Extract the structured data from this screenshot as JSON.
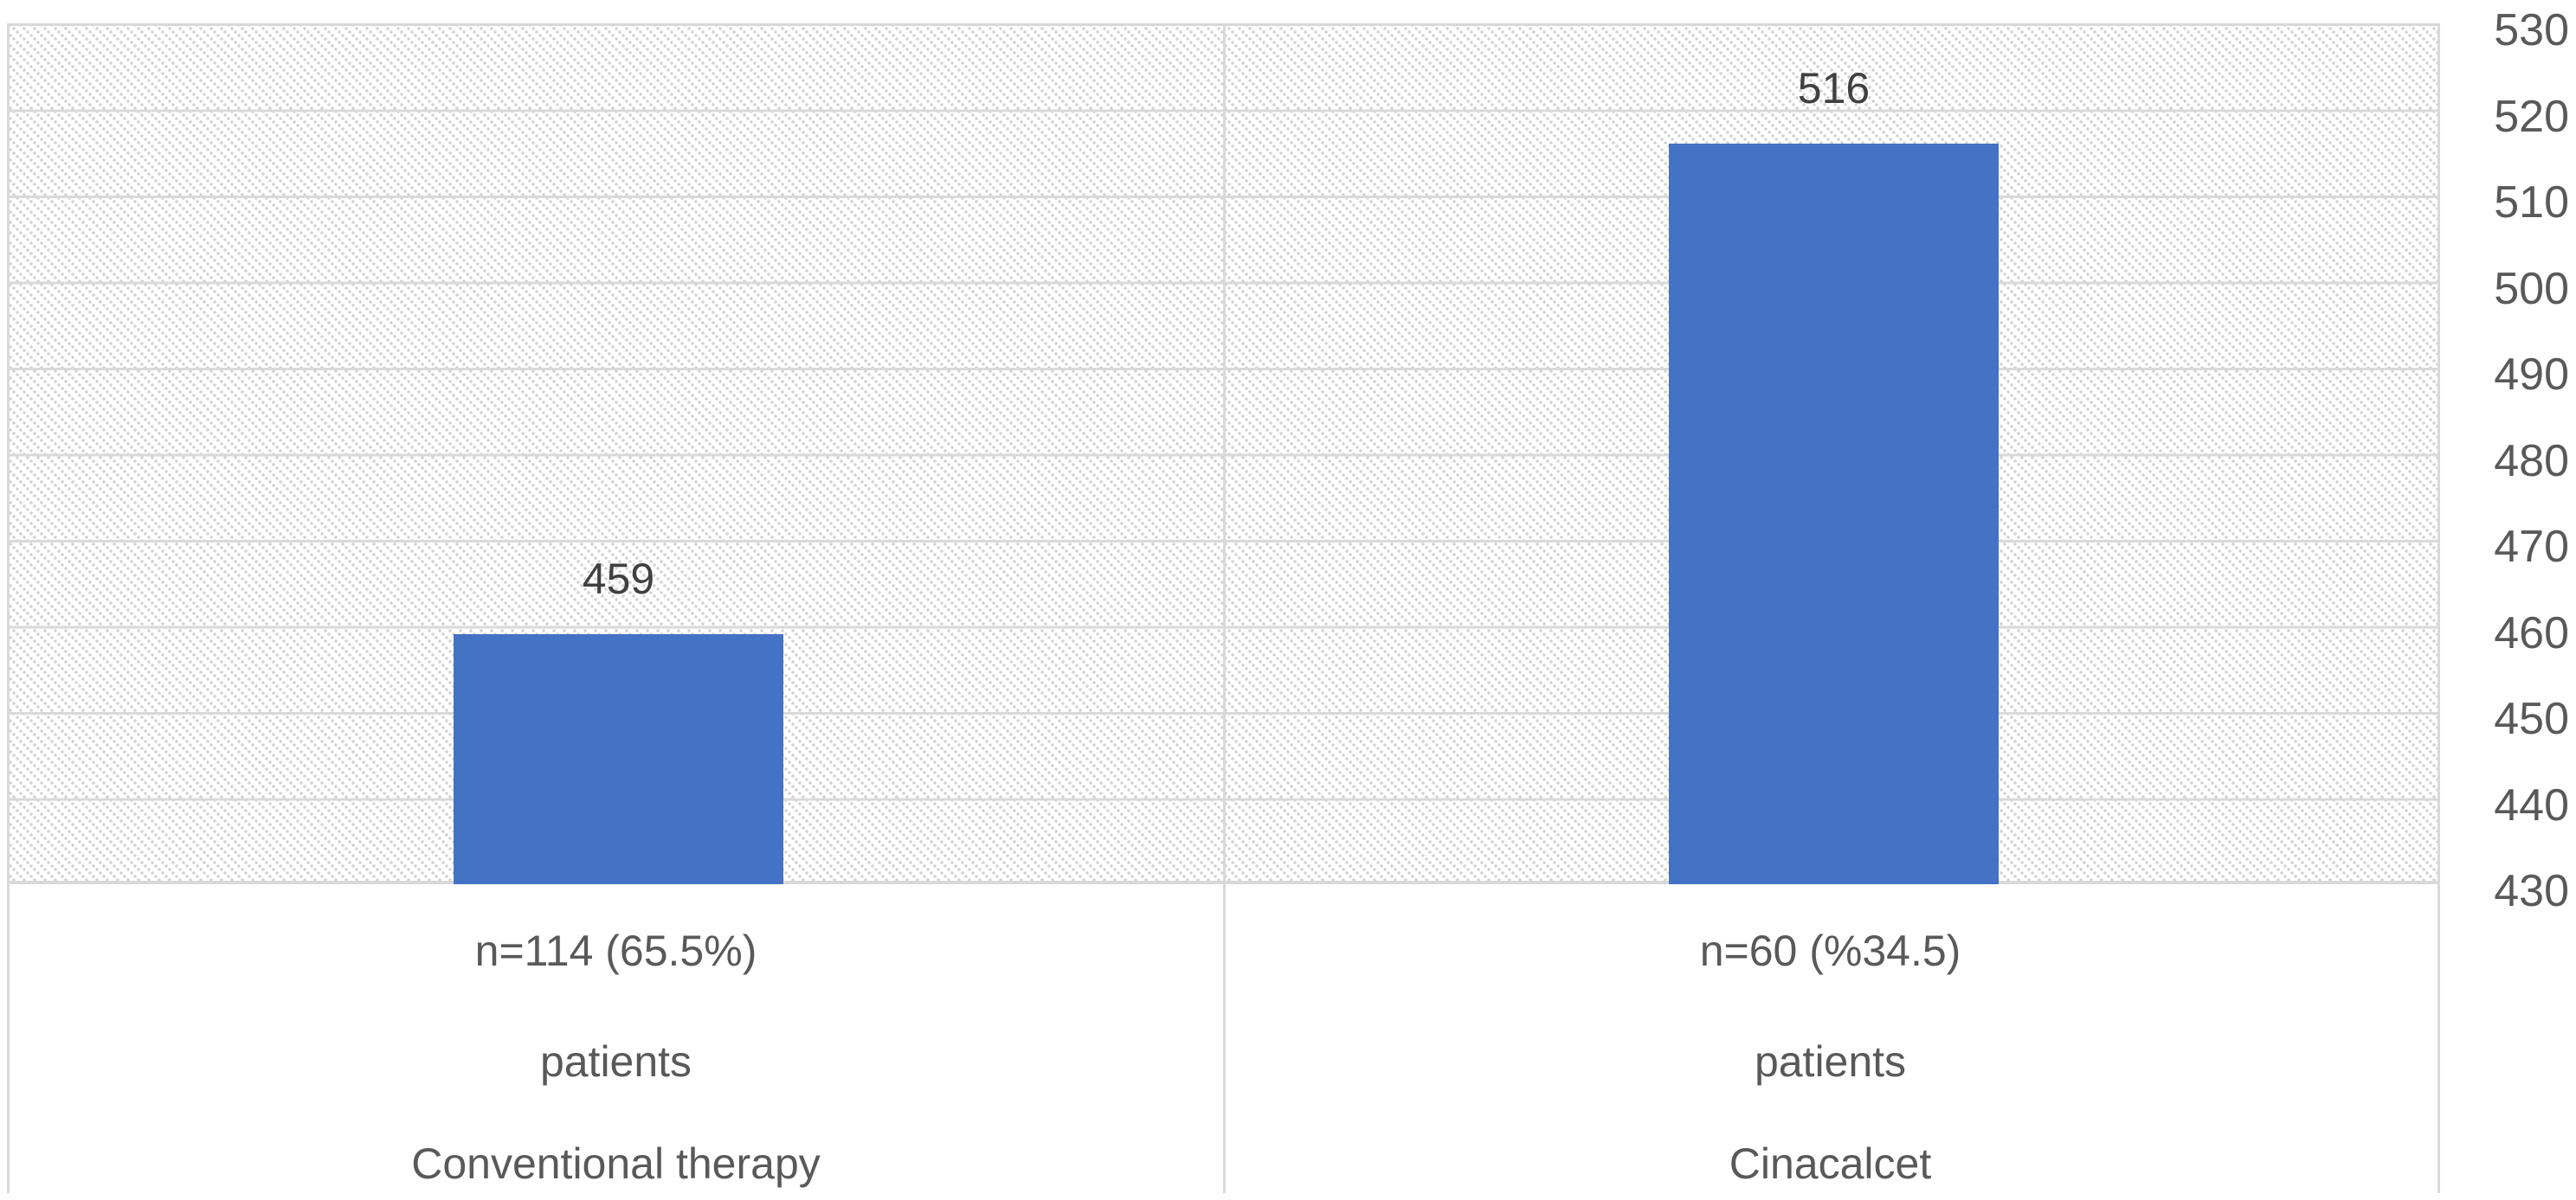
{
  "chart_data": {
    "type": "bar",
    "categories": [
      "Conventional therapy",
      "Cinacalcet"
    ],
    "values": [
      459,
      516
    ],
    "data_labels": [
      "459",
      "516"
    ],
    "category_label_lines": [
      [
        "n=114 (65.5%)",
        "patients",
        "Conventional therapy"
      ],
      [
        "n=60 (%34.5)",
        "patients",
        "Cinacalcet"
      ]
    ],
    "yticks": [
      "530",
      "520",
      "510",
      "500",
      "490",
      "480",
      "470",
      "460",
      "450",
      "440",
      "430"
    ],
    "ylim": [
      430,
      530
    ],
    "ytick_step": 10,
    "grid": true,
    "y_axis_side": "right",
    "legend": "none",
    "title": "",
    "xlabel": "",
    "ylabel": "",
    "bar_color": "#4472C4",
    "gridline_color": "#D9D9D9",
    "axis_text_color": "#595959",
    "data_label_color": "#404040",
    "plot_background": "diagonal-dot-hatch"
  }
}
